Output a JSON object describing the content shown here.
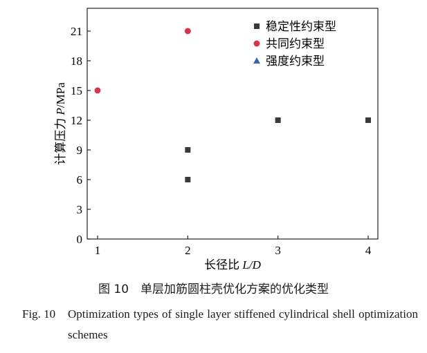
{
  "chart_data": {
    "type": "scatter",
    "title": "",
    "xlabel_cn": "长径比",
    "xlabel_var": "L/D",
    "ylabel_cn": "计算压力",
    "ylabel_var": "P",
    "ylabel_unit": "/MPa",
    "xlim": [
      1,
      4
    ],
    "ylim": [
      0,
      23.3
    ],
    "xticks": [
      1,
      2,
      3,
      4
    ],
    "yticks": [
      0,
      3,
      6,
      9,
      12,
      15,
      18,
      21
    ],
    "grid": false,
    "legend_position": "top-right",
    "series": [
      {
        "name": "稳定性约束型",
        "marker": "square",
        "color": "#3a3a3a",
        "points": [
          [
            2,
            6
          ],
          [
            2,
            9
          ],
          [
            3,
            12
          ],
          [
            4,
            12
          ]
        ]
      },
      {
        "name": "共同约束型",
        "marker": "circle",
        "color": "#d9344a",
        "points": [
          [
            1,
            15
          ],
          [
            2,
            21
          ]
        ]
      },
      {
        "name": "强度约束型",
        "marker": "triangle",
        "color": "#3b63b0",
        "points": []
      }
    ]
  },
  "caption": {
    "cn": "图 10　单层加筋圆柱壳优化方案的优化类型",
    "en_label": "Fig. 10",
    "en_text": "Optimization types of single layer stiffened cylindrical shell optimization schemes"
  }
}
